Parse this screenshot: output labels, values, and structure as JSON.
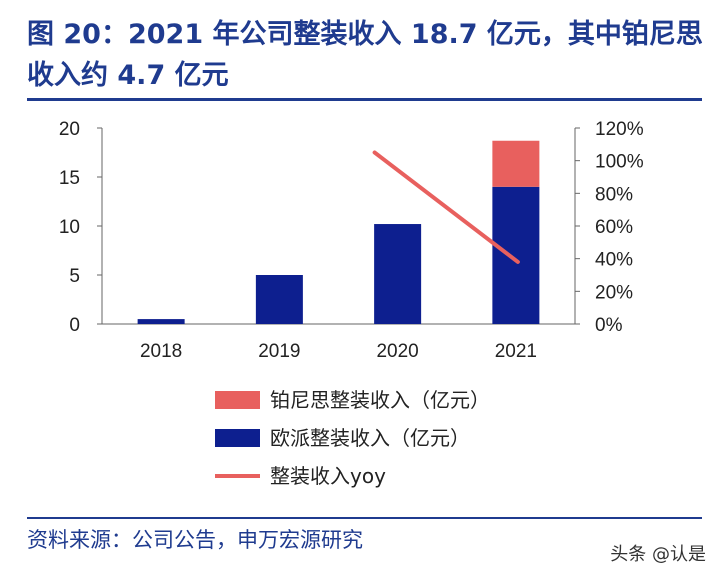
{
  "title": "图 20：2021 年公司整装收入 18.7 亿元，其中铂尼思收入约 4.7 亿元",
  "source": "资料来源：公司公告，申万宏源研究",
  "watermark": "头条 @认是",
  "chart_data": {
    "type": "bar",
    "stacked": true,
    "categories": [
      "2018",
      "2019",
      "2020",
      "2021"
    ],
    "series": [
      {
        "name": "欧派整装收入（亿元）",
        "values": [
          0.5,
          5.0,
          10.2,
          14.0
        ],
        "color": "#0d1f8f",
        "axis": "left"
      },
      {
        "name": "铂尼思整装收入（亿元）",
        "values": [
          0,
          0,
          0,
          4.7
        ],
        "color": "#e8605e",
        "axis": "left"
      },
      {
        "name": "整装收入yoy",
        "type": "line",
        "values": [
          null,
          null,
          105,
          38
        ],
        "color": "#e8605e",
        "axis": "right",
        "unit": "%"
      }
    ],
    "left_axis": {
      "range": [
        0,
        20
      ],
      "ticks": [
        "0",
        "5",
        "10",
        "15",
        "20"
      ]
    },
    "right_axis": {
      "range": [
        0,
        120
      ],
      "ticks": [
        "0%",
        "20%",
        "40%",
        "60%",
        "80%",
        "100%",
        "120%"
      ]
    },
    "legend_order": [
      "铂尼思整装收入（亿元）",
      "欧派整装收入（亿元）",
      "整装收入yoy"
    ],
    "legend_position": "bottom"
  }
}
